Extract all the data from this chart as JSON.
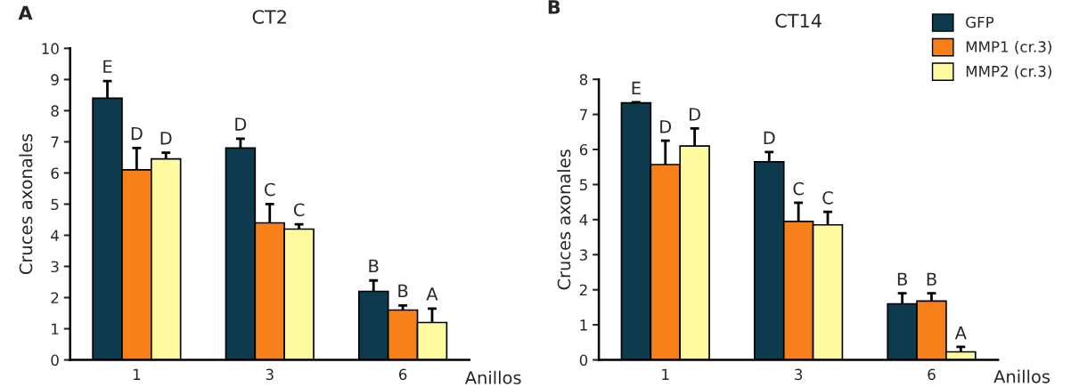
{
  "chart_data": [
    {
      "type": "bar",
      "title": "CT2",
      "xlabel": "Anillos",
      "ylabel": "Cruces axonales",
      "annotations": [
        "A"
      ],
      "categories": [
        "1",
        "3",
        "6"
      ],
      "ylim": [
        0,
        10
      ],
      "yticks": [
        0,
        1,
        2,
        3,
        4,
        5,
        6,
        7,
        8,
        9,
        10
      ],
      "grid": false,
      "legend": false,
      "series": [
        {
          "color": "#0d3a4d",
          "values": [
            8.4,
            6.8,
            2.2
          ],
          "errors": [
            [
              8.4,
              8.95
            ],
            [
              6.8,
              7.1
            ],
            [
              2.2,
              2.55
            ]
          ],
          "value_labels": [
            "E",
            "D",
            "B"
          ]
        },
        {
          "color": "#f7801a",
          "values": [
            6.1,
            4.4,
            1.6
          ],
          "errors": [
            [
              6.1,
              6.8
            ],
            [
              4.4,
              5.0
            ],
            [
              1.6,
              1.75
            ]
          ],
          "value_labels": [
            "D",
            "C",
            "B"
          ]
        },
        {
          "color": "#fefaa0",
          "values": [
            6.45,
            4.2,
            1.2
          ],
          "errors": [
            [
              6.45,
              6.65
            ],
            [
              4.2,
              4.35
            ],
            [
              1.2,
              1.65
            ]
          ],
          "value_labels": [
            "D",
            "C",
            "A"
          ]
        }
      ]
    },
    {
      "type": "bar",
      "title": "CT14",
      "xlabel": "Anillos",
      "ylabel": "Cruces axonales",
      "annotations": [
        "B"
      ],
      "categories": [
        "1",
        "3",
        "6"
      ],
      "ylim": [
        0,
        8
      ],
      "yticks": [
        0,
        1,
        2,
        3,
        4,
        5,
        6,
        7,
        8
      ],
      "grid": false,
      "legend": "top right",
      "series": [
        {
          "name": "GFP",
          "color": "#0d3a4d",
          "values": [
            7.33,
            5.65,
            1.6
          ],
          "errors": [
            [
              7.33,
              7.35
            ],
            [
              5.65,
              5.93
            ],
            [
              1.6,
              1.9
            ]
          ],
          "value_labels": [
            "E",
            "D",
            "B"
          ]
        },
        {
          "name": "MMP1 (cr.3)",
          "color": "#f7801a",
          "values": [
            5.57,
            3.95,
            1.68
          ],
          "errors": [
            [
              5.57,
              6.25
            ],
            [
              3.95,
              4.48
            ],
            [
              1.68,
              1.9
            ]
          ],
          "value_labels": [
            "D",
            "C",
            "B"
          ]
        },
        {
          "name": "MMP2 (cr.3)",
          "color": "#fefaa0",
          "values": [
            6.1,
            3.85,
            0.23
          ],
          "errors": [
            [
              6.1,
              6.6
            ],
            [
              3.85,
              4.22
            ],
            [
              0.23,
              0.37
            ]
          ],
          "value_labels": [
            "D",
            "C",
            "A"
          ]
        }
      ]
    }
  ]
}
